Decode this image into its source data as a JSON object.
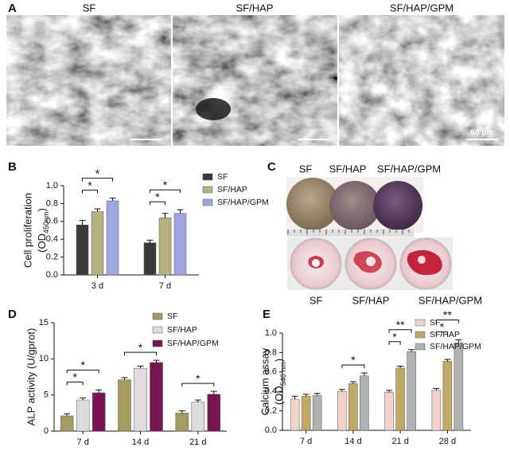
{
  "panel_a": {
    "label": "A",
    "titles": [
      "SF",
      "SF/HAP",
      "SF/HAP/GPM"
    ],
    "scale_bar": "50 μm"
  },
  "panel_c": {
    "label": "C",
    "top_labels": [
      "SF",
      "SF/HAP",
      "SF/HAP/GPM"
    ],
    "bottom_labels": [
      "SF",
      "SF/HAP",
      "SF/HAP/GPM"
    ]
  },
  "chart_data": [
    {
      "type": "bar",
      "panel": "B",
      "ylabel": "Cell proliferation",
      "ylabel_parts": [
        "(OD",
        "450nm",
        ")"
      ],
      "categories": [
        "3 d",
        "7 d"
      ],
      "series": [
        {
          "name": "SF",
          "color": "#3a3a3a",
          "values": [
            0.56,
            0.36
          ],
          "errors": [
            0.05,
            0.03
          ]
        },
        {
          "name": "SF/HAP",
          "color": "#b8b07c",
          "values": [
            0.71,
            0.64
          ],
          "errors": [
            0.03,
            0.05
          ]
        },
        {
          "name": "SF/HAP/GPM",
          "color": "#9ea6e2",
          "values": [
            0.83,
            0.69
          ],
          "errors": [
            0.03,
            0.04
          ]
        }
      ],
      "ylim": [
        0,
        1.0
      ],
      "yticks": [
        {
          "value": 0,
          "label": "0.0"
        },
        {
          "value": 0.2,
          "label": "0.2"
        },
        {
          "value": 0.4,
          "label": "0.4"
        },
        {
          "value": 0.6,
          "label": "0.6"
        },
        {
          "value": 0.8,
          "label": "0.8"
        },
        {
          "value": 1.0,
          "label": "1.0"
        }
      ],
      "significance": [
        {
          "category": 0,
          "pair": [
            0,
            1
          ],
          "label": "*"
        },
        {
          "category": 0,
          "pair": [
            0,
            2
          ],
          "label": "*"
        },
        {
          "category": 1,
          "pair": [
            0,
            1
          ],
          "label": "*"
        },
        {
          "category": 1,
          "pair": [
            0,
            2
          ],
          "label": "*"
        }
      ]
    },
    {
      "type": "bar",
      "panel": "D",
      "ylabel": "ALP activity (U/gprot)",
      "categories": [
        "7 d",
        "14 d",
        "21 d"
      ],
      "series": [
        {
          "name": "SF",
          "color": "#a39c5e",
          "values": [
            2.1,
            7.1,
            2.5
          ],
          "errors": [
            0.3,
            0.3,
            0.3
          ]
        },
        {
          "name": "SF/HAP",
          "color": "#dcdcdc",
          "values": [
            4.3,
            8.7,
            4.0
          ],
          "errors": [
            0.3,
            0.3,
            0.3
          ]
        },
        {
          "name": "SF/HAP/GPM",
          "color": "#7a1450",
          "values": [
            5.3,
            9.5,
            5.1
          ],
          "errors": [
            0.4,
            0.3,
            0.4
          ]
        }
      ],
      "ylim": [
        0,
        15
      ],
      "yticks": [
        0,
        5,
        10,
        15
      ],
      "significance": [
        {
          "category": 0,
          "pair": [
            0,
            1
          ],
          "label": "*"
        },
        {
          "category": 0,
          "pair": [
            0,
            2
          ],
          "label": "*"
        },
        {
          "category": 1,
          "pair": [
            0,
            2
          ],
          "label": "*"
        },
        {
          "category": 2,
          "pair": [
            0,
            2
          ],
          "label": "*"
        }
      ]
    },
    {
      "type": "bar",
      "panel": "E",
      "ylabel": "Calcium assay",
      "ylabel_parts": [
        "(OD",
        "540 nm",
        ")"
      ],
      "categories": [
        "7 d",
        "14 d",
        "21 d",
        "28 d"
      ],
      "series": [
        {
          "name": "SF",
          "color": "#f1d3c9",
          "values": [
            0.32,
            0.4,
            0.39,
            0.41
          ],
          "errors": [
            0.03,
            0.02,
            0.02,
            0.02
          ]
        },
        {
          "name": "SF/HAP",
          "color": "#c2aa62",
          "values": [
            0.35,
            0.48,
            0.64,
            0.71
          ],
          "errors": [
            0.02,
            0.02,
            0.02,
            0.02
          ]
        },
        {
          "name": "SF/HAP/GPM",
          "color": "#b2b2b2",
          "values": [
            0.36,
            0.56,
            0.81,
            0.9
          ],
          "errors": [
            0.02,
            0.03,
            0.02,
            0.03
          ]
        }
      ],
      "ylim": [
        0,
        1.0
      ],
      "yticks": [
        {
          "value": 0,
          "label": "0.0"
        },
        {
          "value": 0.2,
          "label": "0.2"
        },
        {
          "value": 0.4,
          "label": "0.4"
        },
        {
          "value": 0.6,
          "label": "0.6"
        },
        {
          "value": 0.8,
          "label": "0.8"
        },
        {
          "value": 1.0,
          "label": "1.0"
        }
      ],
      "significance": [
        {
          "category": 1,
          "pair": [
            0,
            2
          ],
          "label": "*"
        },
        {
          "category": 2,
          "pair": [
            0,
            1
          ],
          "label": "*"
        },
        {
          "category": 2,
          "pair": [
            0,
            2
          ],
          "label": "**"
        },
        {
          "category": 3,
          "pair": [
            0,
            1
          ],
          "label": "*"
        },
        {
          "category": 3,
          "pair": [
            0,
            2
          ],
          "label": "**"
        }
      ]
    }
  ]
}
